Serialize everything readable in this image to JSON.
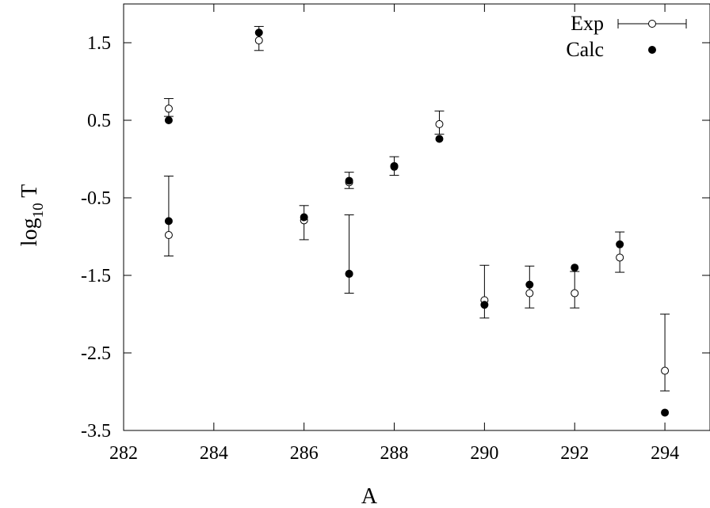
{
  "chart_data": {
    "type": "scatter",
    "title": "",
    "xlabel": "A",
    "ylabel": {
      "base": "log",
      "subscript": "10",
      "rest": " T"
    },
    "xlim": [
      282,
      295
    ],
    "ylim": [
      -3.5,
      2.0
    ],
    "xticks": [
      {
        "value": 282,
        "label": "282"
      },
      {
        "value": 284,
        "label": "284"
      },
      {
        "value": 286,
        "label": "286"
      },
      {
        "value": 288,
        "label": "288"
      },
      {
        "value": 290,
        "label": "290"
      },
      {
        "value": 292,
        "label": "292"
      },
      {
        "value": 294,
        "label": "294"
      }
    ],
    "yticks": [
      {
        "value": 1.5,
        "label": "1.5"
      },
      {
        "value": 0.5,
        "label": "0.5"
      },
      {
        "value": -0.5,
        "label": "-0.5"
      },
      {
        "value": -1.5,
        "label": "-1.5"
      },
      {
        "value": -2.5,
        "label": "-2.5"
      },
      {
        "value": -3.5,
        "label": "-3.5"
      }
    ],
    "grid": false,
    "legend_position": "top-right",
    "series": [
      {
        "name": "Exp",
        "marker": "open-circle",
        "error_bars": true,
        "points": [
          {
            "x": 283,
            "y": 0.65,
            "lo": 0.55,
            "hi": 0.78
          },
          {
            "x": 283,
            "y": -0.98,
            "lo": -1.25,
            "hi": -0.22
          },
          {
            "x": 285,
            "y": 1.53,
            "lo": 1.4,
            "hi": 1.71
          },
          {
            "x": 286,
            "y": -0.79,
            "lo": -1.04,
            "hi": -0.6
          },
          {
            "x": 287,
            "y": -0.3,
            "lo": -0.38,
            "hi": -0.17
          },
          {
            "x": 287,
            "y": -1.48,
            "lo": -1.73,
            "hi": -0.72
          },
          {
            "x": 288,
            "y": -0.1,
            "lo": -0.21,
            "hi": 0.03
          },
          {
            "x": 289,
            "y": 0.45,
            "lo": 0.32,
            "hi": 0.62
          },
          {
            "x": 290,
            "y": -1.82,
            "lo": -2.05,
            "hi": -1.37
          },
          {
            "x": 291,
            "y": -1.73,
            "lo": -1.92,
            "hi": -1.38
          },
          {
            "x": 292,
            "y": -1.73,
            "lo": -1.92,
            "hi": -1.45
          },
          {
            "x": 293,
            "y": -1.27,
            "lo": -1.46,
            "hi": -0.94
          },
          {
            "x": 294,
            "y": -2.73,
            "lo": -2.99,
            "hi": -2.0
          }
        ]
      },
      {
        "name": "Calc",
        "marker": "filled-circle",
        "error_bars": false,
        "points": [
          {
            "x": 283,
            "y": 0.5
          },
          {
            "x": 283,
            "y": -0.8
          },
          {
            "x": 285,
            "y": 1.63
          },
          {
            "x": 286,
            "y": -0.75
          },
          {
            "x": 287,
            "y": -0.28
          },
          {
            "x": 287,
            "y": -1.48
          },
          {
            "x": 288,
            "y": -0.09
          },
          {
            "x": 289,
            "y": 0.26
          },
          {
            "x": 290,
            "y": -1.88
          },
          {
            "x": 291,
            "y": -1.62
          },
          {
            "x": 292,
            "y": -1.4
          },
          {
            "x": 293,
            "y": -1.1
          },
          {
            "x": 294,
            "y": -3.27
          }
        ]
      }
    ]
  }
}
